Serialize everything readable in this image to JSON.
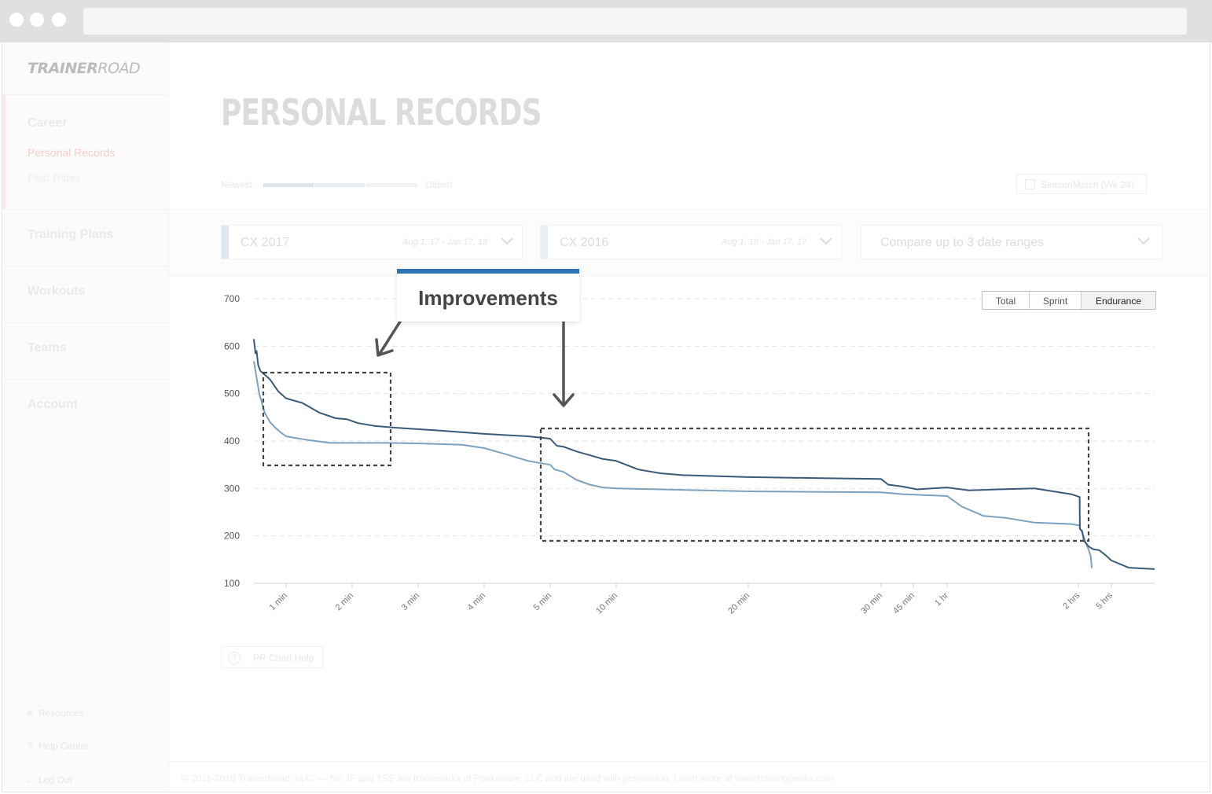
{
  "sidebar": {
    "logo_bold": "TRAINER",
    "logo_light": "ROAD",
    "career": "Career",
    "personal_records": "Personal Records",
    "past_rides": "Past Rides",
    "training_plans": "Training Plans",
    "workouts": "Workouts",
    "teams": "Teams",
    "account": "Account",
    "resources": "Resources",
    "help_center": "Help Center",
    "log_out": "Log Out"
  },
  "header": {
    "title": "PERSONAL RECORDS",
    "legend_newest": "Newest",
    "legend_oldest": "Oldest",
    "seasonmatch_label": "SeasonMatch (Wk 24)"
  },
  "ranges": [
    {
      "name": "CX 2017",
      "dates": "Aug 1, 17 - Jan 17, 18",
      "color": "#e1e7ee"
    },
    {
      "name": "CX 2016",
      "dates": "Aug 1, 16 - Jan 17, 17",
      "color": "#e9eef3"
    }
  ],
  "compare_placeholder": "Compare up to 3 date ranges",
  "chart_toggle": {
    "options": [
      "Total",
      "Sprint",
      "Endurance"
    ],
    "selected": "Endurance"
  },
  "annotation": {
    "label": "Improvements"
  },
  "help_button": "PR Chart Help",
  "footer_text": "© 2011-2018 TrainerRoad, LLC. — NP, IF and TSS are trademarks of Peaksware, LLC and are used with permission. Learn more at www.trainingpeaks.com.",
  "colors": {
    "series_2017": "#3b5a7a",
    "series_2016": "#7da2c0",
    "callout_accent": "#2f74b5"
  },
  "chart_data": {
    "type": "line",
    "ylabel": "",
    "xlabel": "",
    "x_scale": "log",
    "y_ticks": [
      100,
      200,
      300,
      400,
      500,
      600,
      700
    ],
    "ylim": [
      100,
      700
    ],
    "x_ticks": [
      {
        "label": "1 min",
        "seconds": 60
      },
      {
        "label": "2 min",
        "seconds": 120
      },
      {
        "label": "3 min",
        "seconds": 180
      },
      {
        "label": "4 min",
        "seconds": 240
      },
      {
        "label": "5 min",
        "seconds": 300
      },
      {
        "label": "10 min",
        "seconds": 600
      },
      {
        "label": "20 min",
        "seconds": 1200
      },
      {
        "label": "30 min",
        "seconds": 1800
      },
      {
        "label": "45 min",
        "seconds": 2700
      },
      {
        "label": "1 hr",
        "seconds": 3600
      },
      {
        "label": "2 hrs",
        "seconds": 7200
      },
      {
        "label": "5 hrs",
        "seconds": 18000
      }
    ],
    "grid": "horizontal dashed",
    "series": [
      {
        "color": "#3b5a7a",
        "points": [
          [
            0,
            615
          ],
          [
            3,
            585
          ],
          [
            5,
            590
          ],
          [
            8,
            560
          ],
          [
            12,
            548
          ],
          [
            20,
            540
          ],
          [
            30,
            530
          ],
          [
            45,
            505
          ],
          [
            60,
            490
          ],
          [
            75,
            480
          ],
          [
            90,
            460
          ],
          [
            105,
            448
          ],
          [
            115,
            446
          ],
          [
            125,
            438
          ],
          [
            140,
            432
          ],
          [
            160,
            428
          ],
          [
            200,
            422
          ],
          [
            240,
            415
          ],
          [
            280,
            410
          ],
          [
            300,
            405
          ],
          [
            330,
            390
          ],
          [
            360,
            388
          ],
          [
            420,
            378
          ],
          [
            480,
            370
          ],
          [
            540,
            362
          ],
          [
            600,
            358
          ],
          [
            700,
            340
          ],
          [
            800,
            332
          ],
          [
            900,
            328
          ],
          [
            1200,
            324
          ],
          [
            1500,
            322
          ],
          [
            1800,
            320
          ],
          [
            2000,
            308
          ],
          [
            2400,
            304
          ],
          [
            2800,
            298
          ],
          [
            3200,
            300
          ],
          [
            3600,
            302
          ],
          [
            4200,
            296
          ],
          [
            5000,
            298
          ],
          [
            6000,
            300
          ],
          [
            7000,
            288
          ],
          [
            7600,
            282
          ],
          [
            7700,
            215
          ],
          [
            8400,
            210
          ],
          [
            9000,
            190
          ],
          [
            10500,
            178
          ],
          [
            12000,
            172
          ],
          [
            14000,
            170
          ],
          [
            15000,
            165
          ],
          [
            16000,
            160
          ],
          [
            18000,
            148
          ],
          [
            20000,
            133
          ],
          [
            23000,
            130
          ]
        ]
      },
      {
        "color": "#7da2c0",
        "points": [
          [
            0,
            568
          ],
          [
            10,
            500
          ],
          [
            20,
            460
          ],
          [
            30,
            440
          ],
          [
            40,
            428
          ],
          [
            50,
            418
          ],
          [
            60,
            410
          ],
          [
            80,
            402
          ],
          [
            100,
            396
          ],
          [
            120,
            396
          ],
          [
            150,
            396
          ],
          [
            180,
            395
          ],
          [
            220,
            392
          ],
          [
            240,
            385
          ],
          [
            260,
            372
          ],
          [
            280,
            358
          ],
          [
            300,
            350
          ],
          [
            320,
            340
          ],
          [
            360,
            335
          ],
          [
            420,
            318
          ],
          [
            480,
            308
          ],
          [
            540,
            302
          ],
          [
            600,
            300
          ],
          [
            800,
            298
          ],
          [
            1200,
            294
          ],
          [
            1800,
            292
          ],
          [
            2400,
            288
          ],
          [
            3000,
            286
          ],
          [
            3600,
            284
          ],
          [
            4000,
            262
          ],
          [
            4600,
            242
          ],
          [
            5200,
            238
          ],
          [
            6000,
            228
          ],
          [
            7000,
            225
          ],
          [
            7600,
            222
          ],
          [
            7700,
            215
          ],
          [
            8400,
            208
          ],
          [
            9500,
            188
          ],
          [
            10500,
            172
          ],
          [
            11200,
            158
          ],
          [
            11600,
            132
          ]
        ]
      }
    ]
  }
}
